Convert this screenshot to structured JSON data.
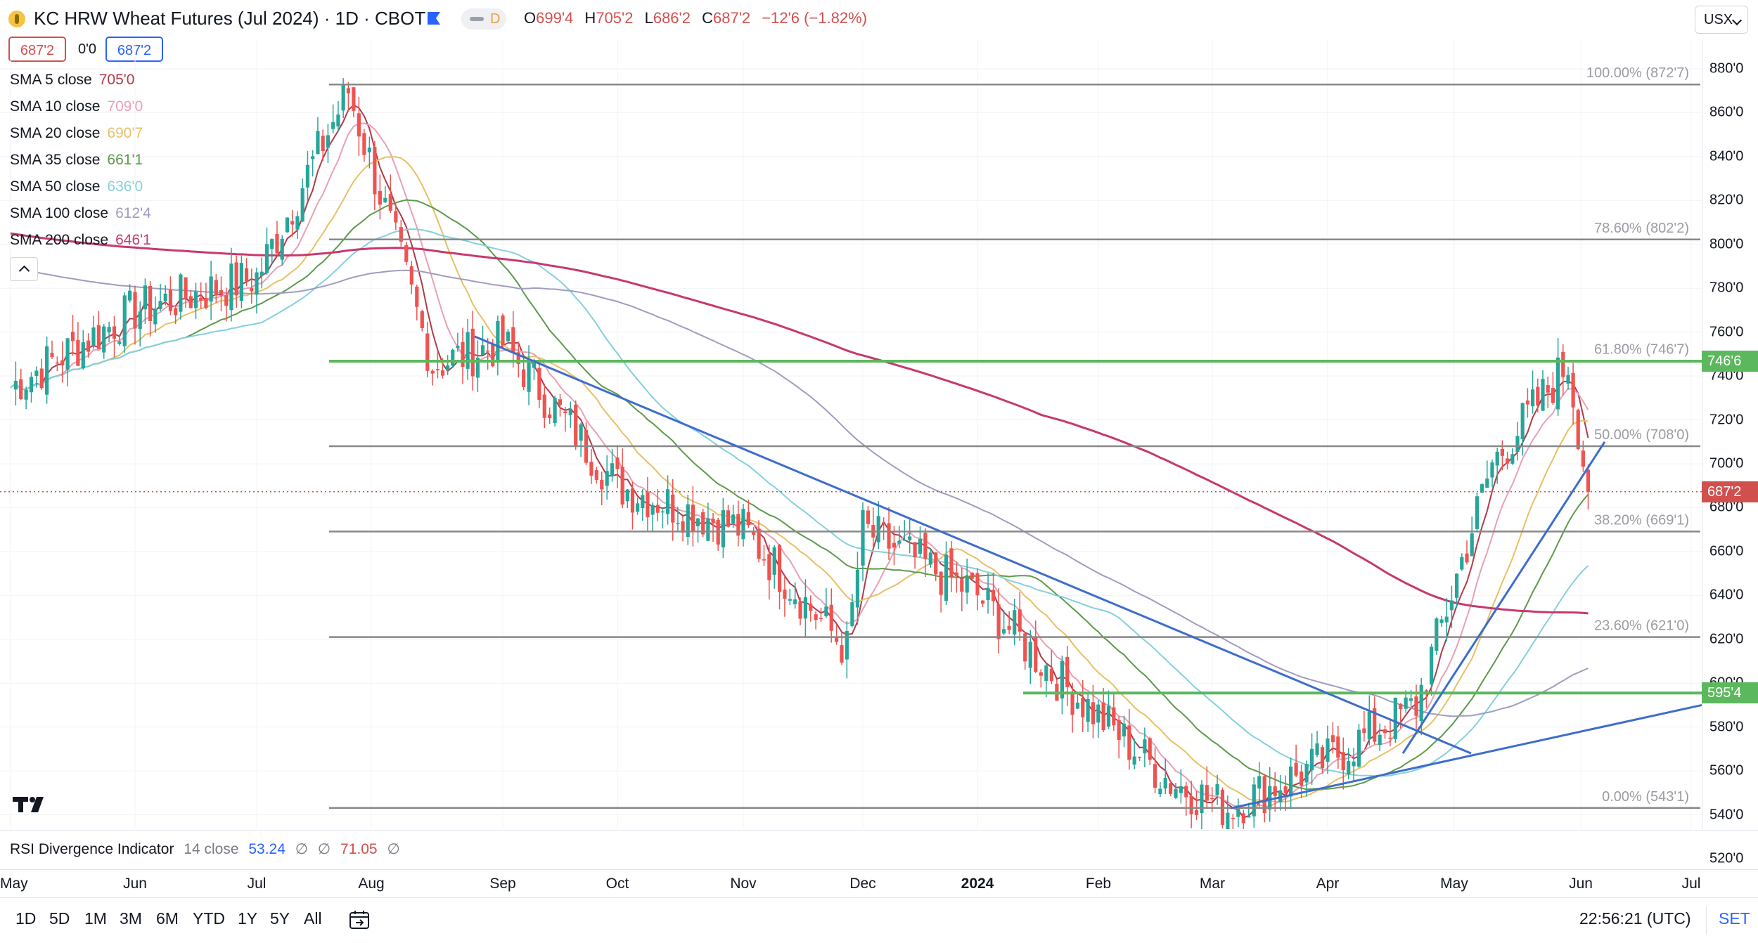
{
  "header": {
    "title": "KC HRW Wheat Futures (Jul 2024) · 1D · CBOT",
    "flag_icon": "flag-icon",
    "pill_label": "D",
    "ohlc": {
      "o_label": "O",
      "o": "699'4",
      "h_label": "H",
      "h": "705'2",
      "l_label": "L",
      "l": "686'2",
      "c_label": "C",
      "c": "687'2",
      "change": "−12'6 (−1.82%)"
    },
    "currency": "USX"
  },
  "quote": {
    "bid": "687'2",
    "spread": "0'0",
    "ask": "687'2"
  },
  "smas": [
    {
      "name": "SMA 5 close",
      "value": "705'0",
      "color": "#b03a4a"
    },
    {
      "name": "SMA 10 close",
      "value": "709'0",
      "color": "#e8a0b4"
    },
    {
      "name": "SMA 20 close",
      "value": "690'7",
      "color": "#e8c064"
    },
    {
      "name": "SMA 35 close",
      "value": "661'1",
      "color": "#5c9a4a"
    },
    {
      "name": "SMA 50 close",
      "value": "636'0",
      "color": "#84d0dc"
    },
    {
      "name": "SMA 100 close",
      "value": "612'4",
      "color": "#a09cc0"
    },
    {
      "name": "SMA 200 close",
      "value": "646'1",
      "color": "#c8386e"
    }
  ],
  "price_axis": {
    "ticks": [
      "880'0",
      "860'0",
      "840'0",
      "820'0",
      "800'0",
      "780'0",
      "760'0",
      "740'0",
      "720'0",
      "700'0",
      "680'0",
      "660'0",
      "640'0",
      "620'0",
      "600'0",
      "580'0",
      "560'0",
      "540'0",
      "520'0"
    ],
    "tick_values": [
      880,
      860,
      840,
      820,
      800,
      780,
      760,
      740,
      720,
      700,
      680,
      660,
      640,
      620,
      600,
      580,
      560,
      540,
      520
    ],
    "current_label": "687'2",
    "current_value": 687.25,
    "current_color": "#d1504e",
    "level_upper_label": "746'6",
    "level_upper_value": 746.75,
    "level_lower_label": "595'4",
    "level_lower_value": 595.5,
    "level_color": "#5cb85c"
  },
  "fib_levels": [
    {
      "label": "100.00% (872'7)",
      "value": 872.875
    },
    {
      "label": "78.60% (802'2)",
      "value": 802.25
    },
    {
      "label": "61.80% (746'7)",
      "value": 746.875
    },
    {
      "label": "50.00% (708'0)",
      "value": 708.0
    },
    {
      "label": "38.20% (669'1)",
      "value": 669.125
    },
    {
      "label": "23.60% (621'0)",
      "value": 621.0
    },
    {
      "label": "0.00% (543'1)",
      "value": 543.125
    }
  ],
  "time_axis": [
    {
      "label": "May",
      "bold": false
    },
    {
      "label": "Jun",
      "bold": false
    },
    {
      "label": "Jul",
      "bold": false
    },
    {
      "label": "Aug",
      "bold": false
    },
    {
      "label": "Sep",
      "bold": false
    },
    {
      "label": "Oct",
      "bold": false
    },
    {
      "label": "Nov",
      "bold": false
    },
    {
      "label": "Dec",
      "bold": false
    },
    {
      "label": "2024",
      "bold": true
    },
    {
      "label": "Feb",
      "bold": false
    },
    {
      "label": "Mar",
      "bold": false
    },
    {
      "label": "Apr",
      "bold": false
    },
    {
      "label": "May",
      "bold": false
    },
    {
      "label": "Jun",
      "bold": false
    },
    {
      "label": "Jul",
      "bold": false
    }
  ],
  "rsi": {
    "name": "RSI Divergence Indicator",
    "params": "14 close",
    "value1": "53.24",
    "na1": "∅",
    "na2": "∅",
    "value2": "71.05",
    "na3": "∅"
  },
  "bottom_bar": {
    "ranges": [
      "1D",
      "5D",
      "1M",
      "3M",
      "6M",
      "YTD",
      "1Y",
      "5Y",
      "All"
    ],
    "clock": "22:56:21 (UTC)",
    "set_label": "SET"
  },
  "colors": {
    "up": "#26a69a",
    "down": "#ef5350",
    "trendline": "#3d6dcc",
    "fib_line": "#888888"
  },
  "chart_data": {
    "type": "candlestick",
    "instrument": "KC HRW Wheat Futures (Jul 2024)",
    "interval": "1D",
    "ylim": [
      510,
      890
    ],
    "x_range": [
      "2023-05",
      "2024-07"
    ],
    "candles_anchor": [
      {
        "date": "2023-05-01",
        "close": 735
      },
      {
        "date": "2023-06-01",
        "close": 770
      },
      {
        "date": "2023-07-01",
        "close": 785
      },
      {
        "date": "2023-07-25",
        "close": 870
      },
      {
        "date": "2023-08-15",
        "close": 745
      },
      {
        "date": "2023-09-01",
        "close": 755
      },
      {
        "date": "2023-10-01",
        "close": 690
      },
      {
        "date": "2023-11-01",
        "close": 670
      },
      {
        "date": "2023-11-27",
        "close": 615
      },
      {
        "date": "2023-12-01",
        "close": 670
      },
      {
        "date": "2024-01-01",
        "close": 640
      },
      {
        "date": "2024-01-22",
        "close": 600
      },
      {
        "date": "2024-02-20",
        "close": 555
      },
      {
        "date": "2024-03-05",
        "close": 543
      },
      {
        "date": "2024-04-01",
        "close": 565
      },
      {
        "date": "2024-04-22",
        "close": 590
      },
      {
        "date": "2024-05-10",
        "close": 700
      },
      {
        "date": "2024-05-28",
        "close": 746
      },
      {
        "date": "2024-06-03",
        "close": 687.25
      }
    ]
  }
}
